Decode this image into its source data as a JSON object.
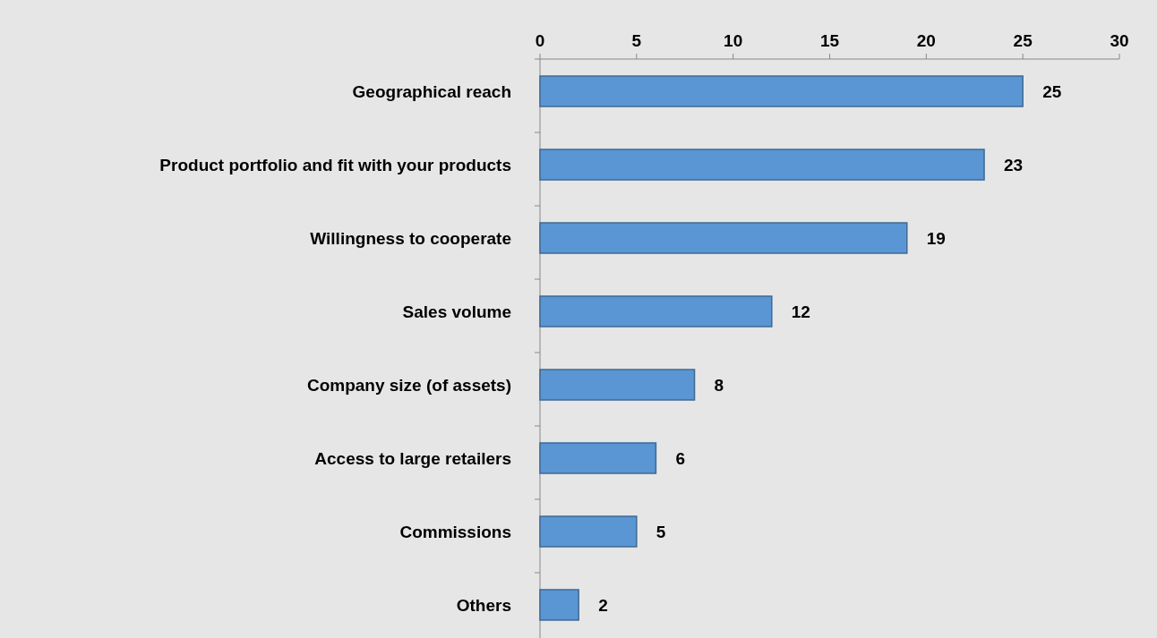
{
  "chart_data": {
    "type": "bar",
    "orientation": "horizontal",
    "categories": [
      "Geographical reach",
      "Product portfolio and fit with your products",
      "Willingness to cooperate",
      "Sales volume",
      "Company size (of assets)",
      "Access to large retailers",
      "Commissions",
      "Others"
    ],
    "values": [
      25,
      23,
      19,
      12,
      8,
      6,
      5,
      2
    ],
    "color": "#5a96d4",
    "xlim": [
      0,
      30
    ],
    "xticks": [
      0,
      5,
      10,
      15,
      20,
      25,
      30
    ],
    "data_labels": true,
    "grid": false
  }
}
